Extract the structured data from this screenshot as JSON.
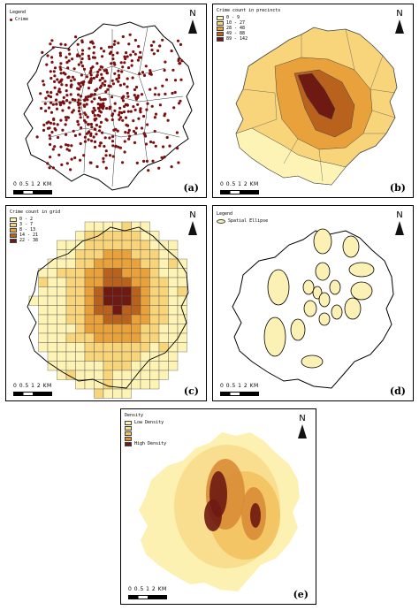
{
  "panels": {
    "a": {
      "label": "(a)",
      "legend_title": "Legend",
      "legend_item": "Crime",
      "point_color": "#7a1010"
    },
    "b": {
      "label": "(b)",
      "legend_title": "Crime count in precincts",
      "classes": [
        {
          "range": "0 - 9",
          "color": "#fdf3b4"
        },
        {
          "range": "10 - 27",
          "color": "#f8d57a"
        },
        {
          "range": "28 - 48",
          "color": "#e9a23b"
        },
        {
          "range": "49 - 88",
          "color": "#b9621d"
        },
        {
          "range": "89 - 142",
          "color": "#6e1a12"
        }
      ]
    },
    "c": {
      "label": "(c)",
      "legend_title": "Crime count in grid",
      "classes": [
        {
          "range": "0 - 2",
          "color": "#fdf3b4"
        },
        {
          "range": "3 - 7",
          "color": "#f8d57a"
        },
        {
          "range": "8 - 13",
          "color": "#e9a23b"
        },
        {
          "range": "14 - 21",
          "color": "#b9621d"
        },
        {
          "range": "22 - 38",
          "color": "#6e1a12"
        }
      ]
    },
    "d": {
      "label": "(d)",
      "legend_title": "Legend",
      "legend_item": "Spatial Ellipse",
      "ellipse_fill": "#fbf1b5"
    },
    "e": {
      "label": "(e)",
      "legend_title": "Density",
      "low_label": "Low Density",
      "high_label": "High Density",
      "ramp": [
        "#fdf1b2",
        "#f8dc8c",
        "#f2c261",
        "#d98c36",
        "#6e1a12"
      ]
    }
  },
  "north_label": "N",
  "scale_ticks": "0  0.5  1     2 KM"
}
